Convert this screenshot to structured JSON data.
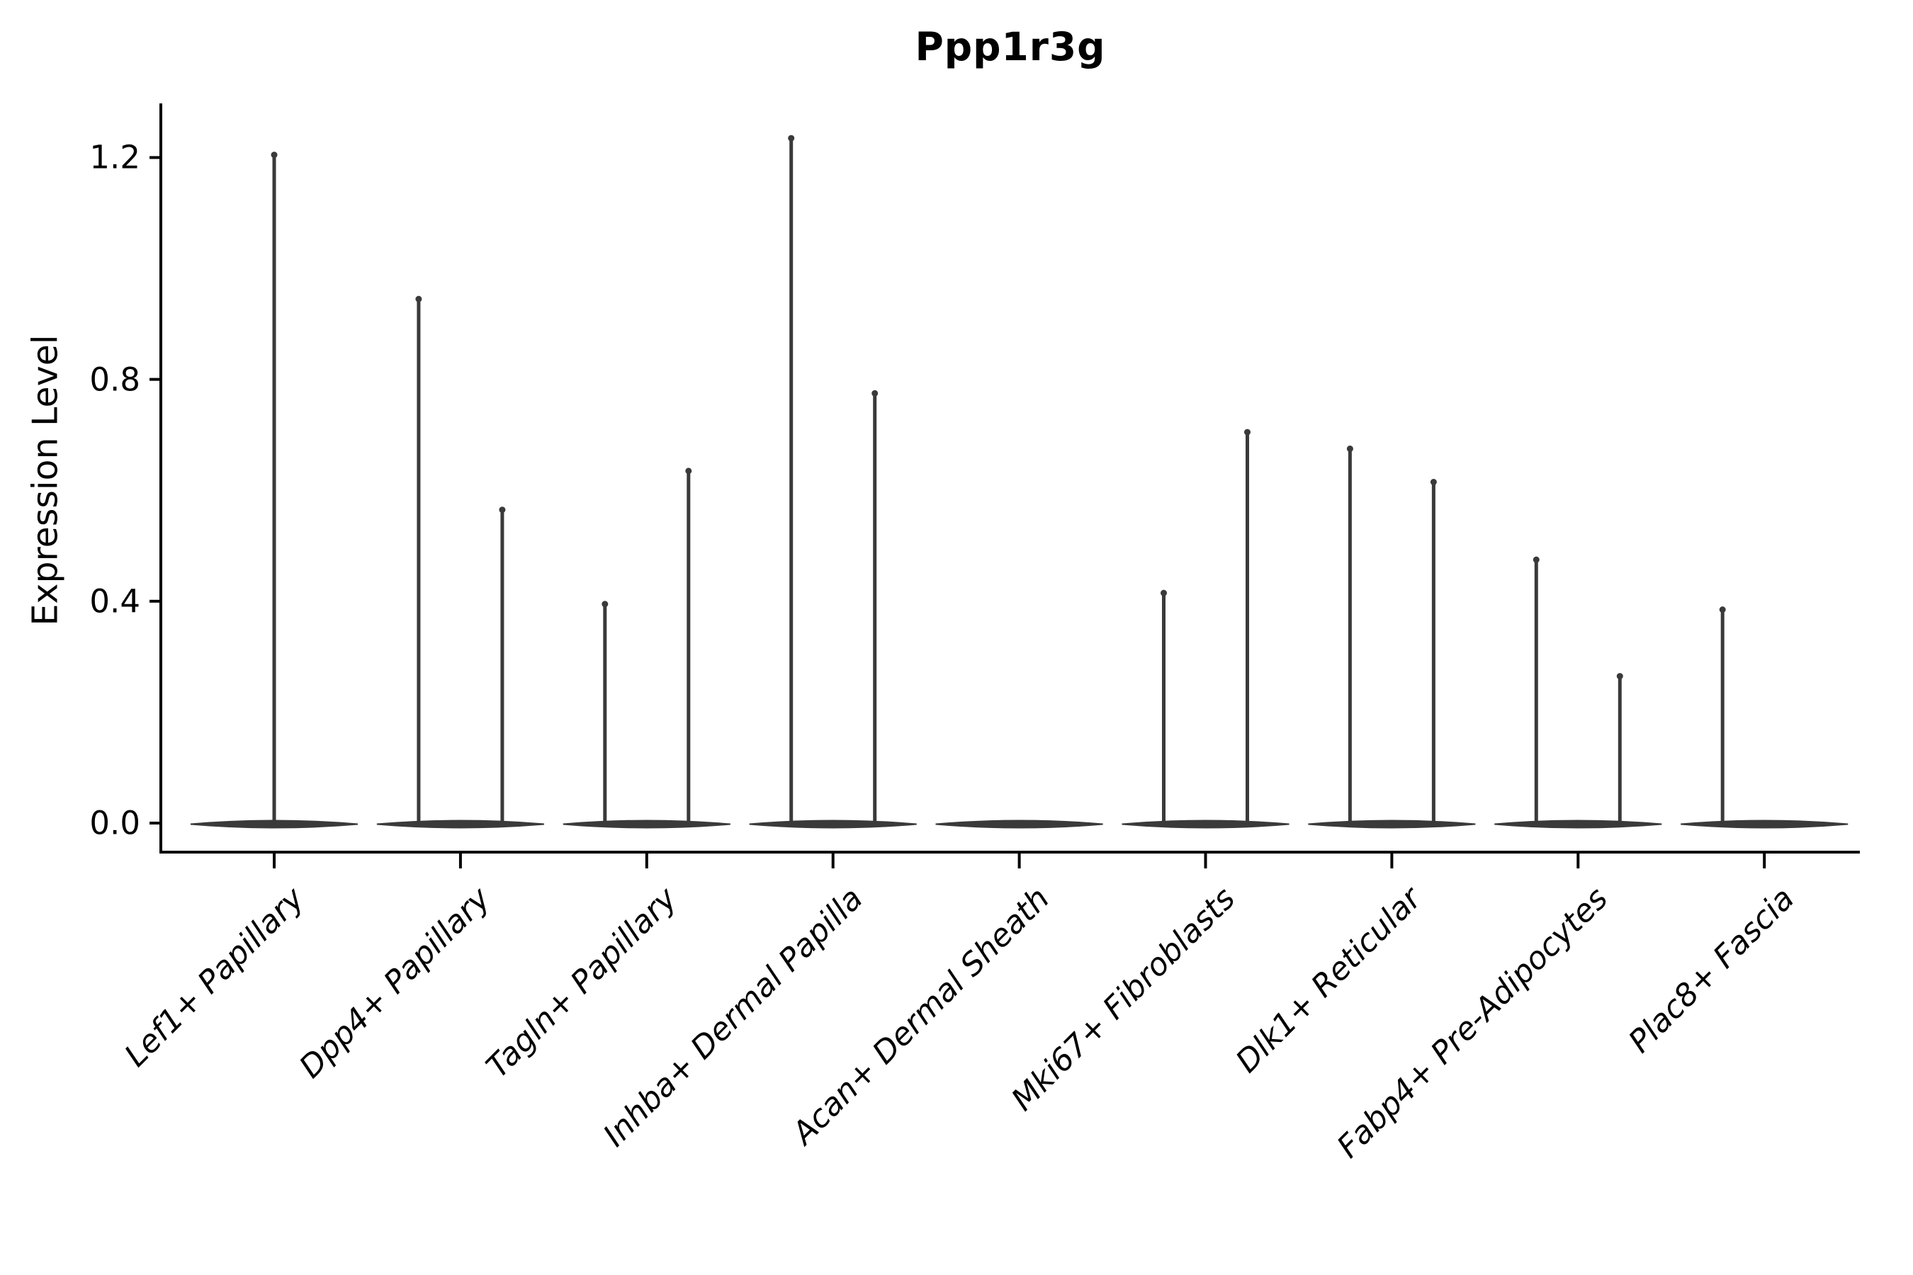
{
  "chart_data": {
    "type": "violin",
    "title": "Ppp1r3g",
    "ylabel": "Expression Level",
    "xlabel": "",
    "grid": false,
    "legend": "none",
    "ylim": [
      -0.05,
      1.3
    ],
    "yticks": [
      {
        "value": 0.0,
        "label": "0.0"
      },
      {
        "value": 0.4,
        "label": "0.4"
      },
      {
        "value": 0.8,
        "label": "0.8"
      },
      {
        "value": 1.2,
        "label": "1.2"
      }
    ],
    "baseline_value": 0.0,
    "violin_color": "#3a3a3a",
    "axis_color": "#000000",
    "categories": [
      {
        "label": "Lef1+ Papillary",
        "violins": [
          {
            "position": "center",
            "max": 1.21
          }
        ]
      },
      {
        "label": "Dpp4+ Papillary",
        "violins": [
          {
            "position": "left",
            "max": 0.95
          },
          {
            "position": "right",
            "max": 0.57
          }
        ]
      },
      {
        "label": "Tagln+ Papillary",
        "violins": [
          {
            "position": "left",
            "max": 0.4
          },
          {
            "position": "right",
            "max": 0.64
          }
        ]
      },
      {
        "label": "Inhba+ Dermal Papilla",
        "violins": [
          {
            "position": "left",
            "max": 1.24
          },
          {
            "position": "right",
            "max": 0.78
          }
        ]
      },
      {
        "label": "Acan+ Dermal Sheath",
        "violins": []
      },
      {
        "label": "Mki67+ Fibroblasts",
        "violins": [
          {
            "position": "left",
            "max": 0.42
          },
          {
            "position": "right",
            "max": 0.71
          }
        ]
      },
      {
        "label": "Dlk1+ Reticular",
        "violins": [
          {
            "position": "left",
            "max": 0.68
          },
          {
            "position": "right",
            "max": 0.62
          }
        ]
      },
      {
        "label": "Fabp4+ Pre-Adipocytes",
        "violins": [
          {
            "position": "left",
            "max": 0.48
          },
          {
            "position": "right",
            "max": 0.27
          }
        ]
      },
      {
        "label": "Plac8+ Fascia",
        "violins": [
          {
            "position": "left",
            "max": 0.39
          }
        ]
      }
    ]
  }
}
